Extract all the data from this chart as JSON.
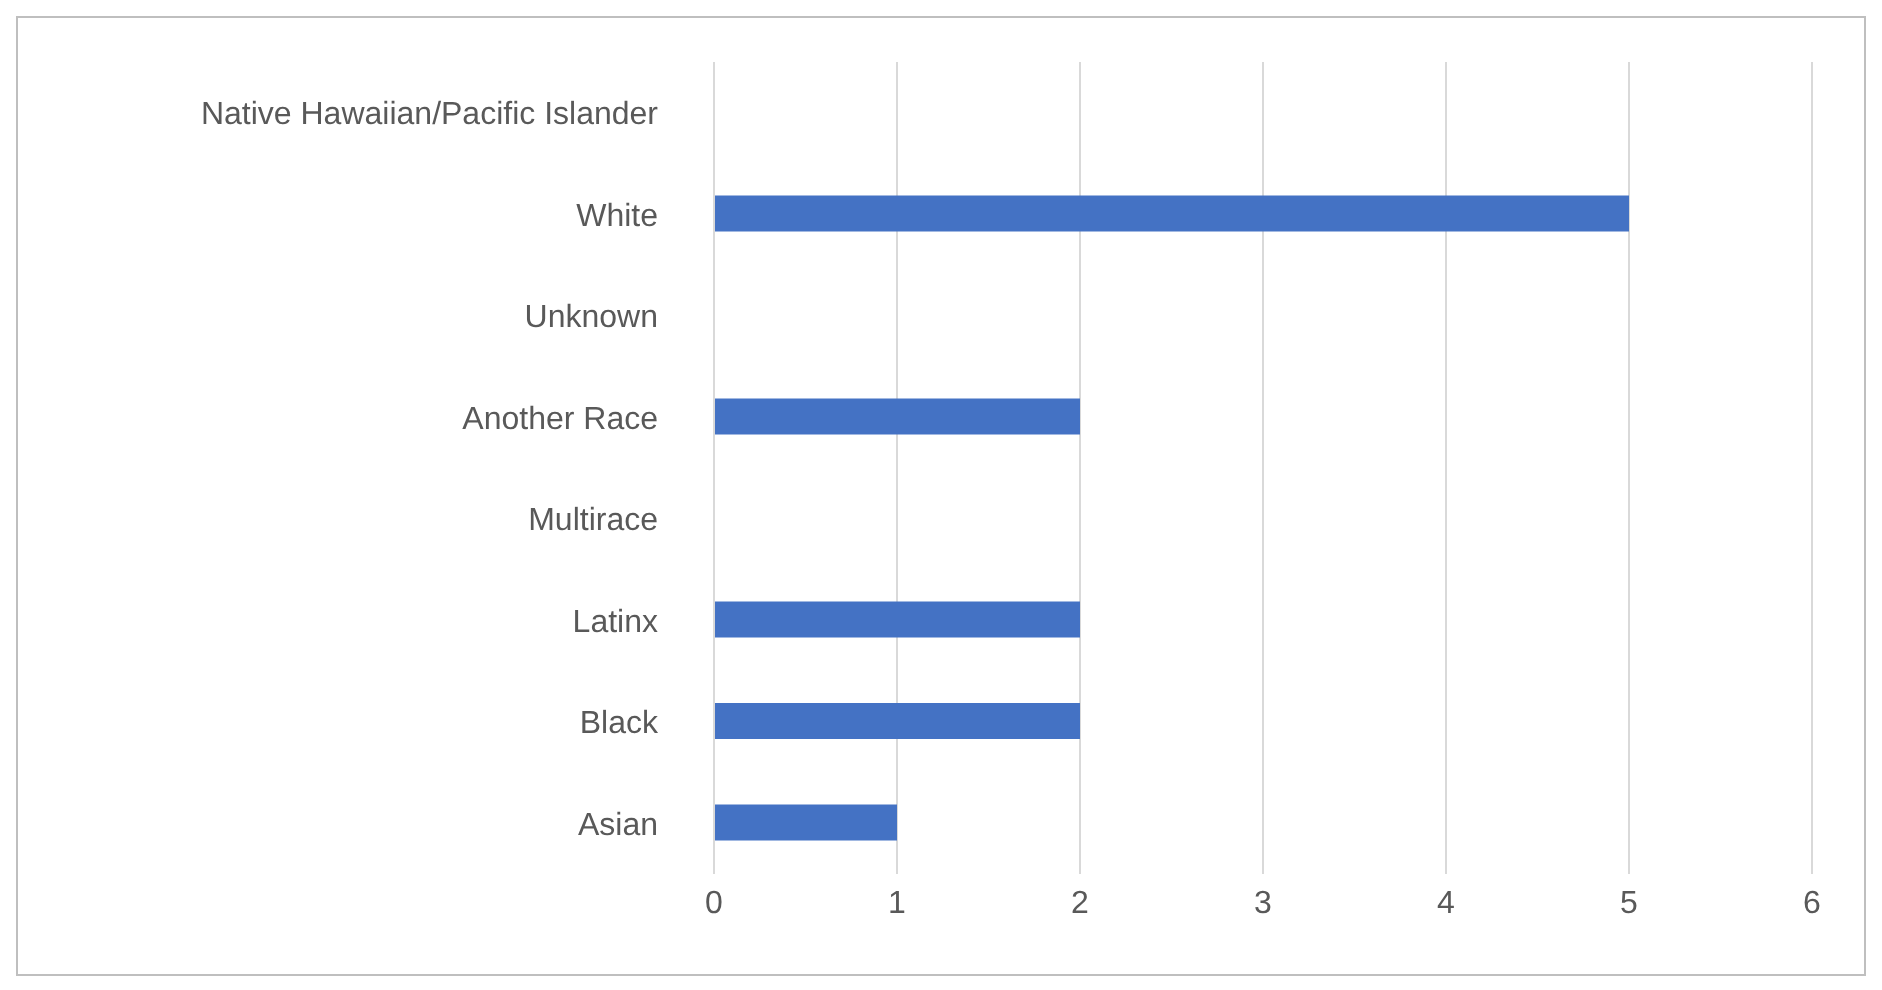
{
  "chart_data": {
    "type": "bar",
    "orientation": "horizontal",
    "categories": [
      "Native Hawaiian/Pacific Islander",
      "White",
      "Unknown",
      "Another Race",
      "Multirace",
      "Latinx",
      "Black",
      "Asian"
    ],
    "values": [
      0,
      5,
      0,
      2,
      0,
      2,
      2,
      1
    ],
    "color": "#4472c4",
    "xlim": [
      0,
      6
    ],
    "xticks": [
      0,
      1,
      2,
      3,
      4,
      5,
      6
    ],
    "grid": "x"
  }
}
